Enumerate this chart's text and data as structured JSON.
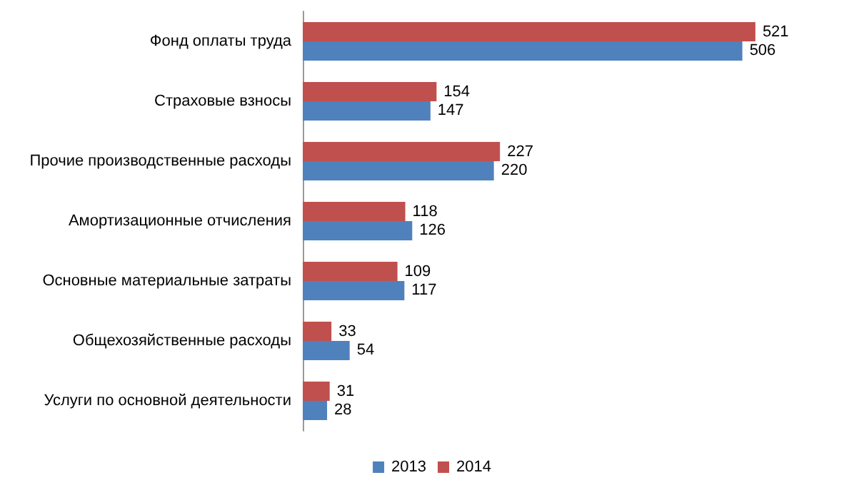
{
  "chart_data": {
    "type": "bar",
    "orientation": "horizontal",
    "categories": [
      "Фонд оплаты труда",
      "Страховые взносы",
      "Прочие производственные расходы",
      "Амортизационные отчисления",
      "Основные материальные затраты",
      "Общехозяйственные расходы",
      "Услуги по основной деятельности"
    ],
    "series": [
      {
        "name": "2013",
        "color": "#4f81bd",
        "values": [
          506,
          147,
          220,
          126,
          117,
          54,
          28
        ]
      },
      {
        "name": "2014",
        "color": "#c0504d",
        "values": [
          521,
          154,
          227,
          118,
          109,
          33,
          31
        ]
      }
    ],
    "data_labels": true,
    "legend": "bottom",
    "grid": false
  }
}
